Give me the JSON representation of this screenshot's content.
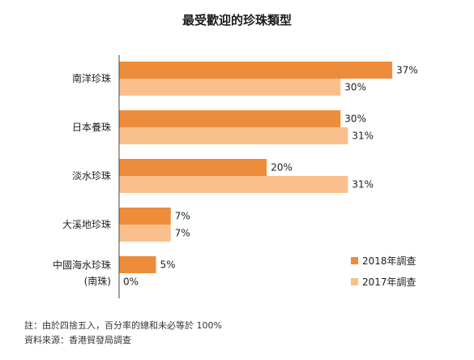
{
  "colors": {
    "series_2018": "#ED8C3B",
    "series_2017": "#F9C08E",
    "axis": "#444444",
    "text": "#222222"
  },
  "chart_data": {
    "type": "bar",
    "orientation": "horizontal",
    "title": "最受歡迎的珍珠類型",
    "categories": [
      [
        "南洋珍珠"
      ],
      [
        "日本養珠"
      ],
      [
        "淡水珍珠"
      ],
      [
        "大溪地珍珠"
      ],
      [
        "中國海水珍珠",
        "(南珠)"
      ]
    ],
    "series": [
      {
        "name": "2018年調查",
        "values": [
          37,
          30,
          20,
          7,
          5
        ],
        "labels": [
          "37%",
          "30%",
          "20%",
          "7%",
          "5%"
        ]
      },
      {
        "name": "2017年調查",
        "values": [
          30,
          31,
          31,
          7,
          0
        ],
        "labels": [
          "30%",
          "31%",
          "31%",
          "7%",
          "0%"
        ]
      }
    ],
    "xlim": [
      0,
      40
    ],
    "unit": "%",
    "grid": false,
    "legend_position": "bottom-right"
  },
  "notes": {
    "line1": "註：由於四捨五入，百分率的總和未必等於 100%",
    "line2": "資料來源：香港貿發局調查"
  }
}
